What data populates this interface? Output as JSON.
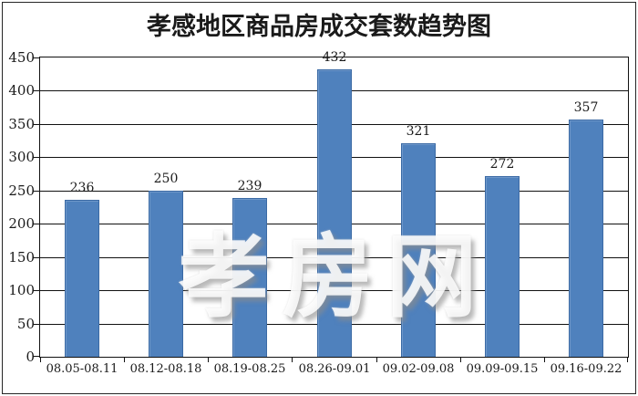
{
  "chart_data": {
    "type": "bar",
    "title": "孝感地区商品房成交套数趋势图",
    "categories": [
      "08.05-08.11",
      "08.12-08.18",
      "08.19-08.25",
      "08.26-09.01",
      "09.02-09.08",
      "09.09-09.15",
      "09.16-09.22"
    ],
    "values": [
      236,
      250,
      239,
      432,
      321,
      272,
      357
    ],
    "xlabel": "",
    "ylabel": "",
    "ylim": [
      0,
      450
    ],
    "ytick_step": 50,
    "ytick_labels": [
      "0",
      "50",
      "100",
      "150",
      "200",
      "250",
      "300",
      "350",
      "400",
      "450"
    ],
    "grid": true,
    "legend_position": "none",
    "bar_color": "#4f81bd",
    "bar_border_color": "#3b6aa5",
    "gridline_color": "#111111",
    "text_color": "#1a1a1a",
    "background_color": "#ffffff"
  },
  "watermark": {
    "text": "孝房网"
  }
}
